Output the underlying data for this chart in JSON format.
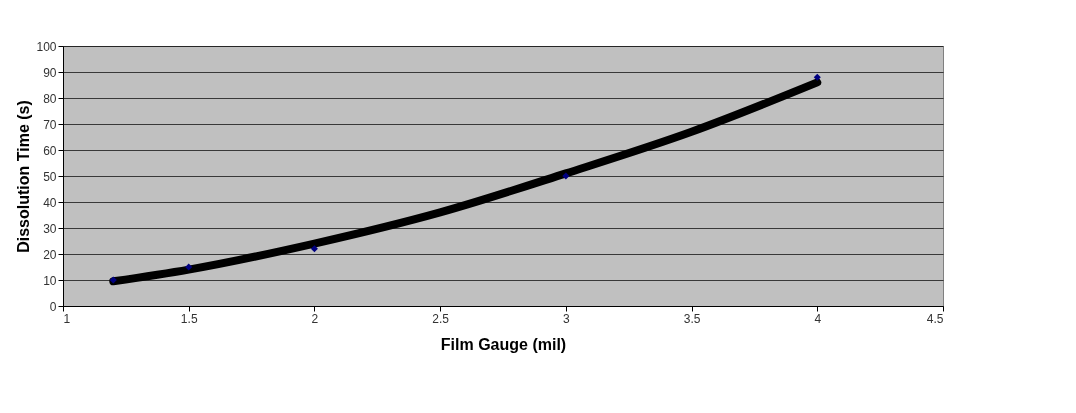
{
  "chart_data": {
    "type": "scatter",
    "xlabel": "Film Gauge (mil)",
    "ylabel": "Dissolution Time (s)",
    "x": [
      1.2,
      1.5,
      2,
      3,
      4
    ],
    "series": [
      {
        "color": "#000080",
        "marker": "diamond",
        "values": [
          10,
          15,
          22,
          50,
          88
        ]
      },
      {
        "type": "line",
        "color": "#000000",
        "x": [
          1.2,
          1.5,
          2,
          2.5,
          3,
          3.5,
          4
        ],
        "values": [
          9.5,
          14,
          24,
          36,
          51,
          67,
          86
        ]
      }
    ],
    "xlim": [
      1,
      4.5
    ],
    "xticks": [
      1,
      1.5,
      2,
      2.5,
      3,
      3.5,
      4,
      4.5
    ],
    "ylim": [
      0,
      100
    ],
    "yticks": [
      0,
      10,
      20,
      30,
      40,
      50,
      60,
      70,
      80,
      90,
      100
    ],
    "grid": "y"
  }
}
